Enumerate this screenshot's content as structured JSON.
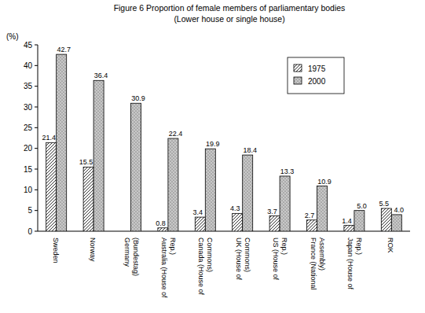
{
  "chart_data": {
    "type": "bar",
    "title": "Figure 6 Proportion of female members of parliamentary bodies",
    "subtitle": "(Lower house or single house)",
    "y_label": "(%)",
    "categories": [
      "Sweden",
      "Norway",
      "Germany (Bundestag)",
      "Australia (House of Rep.)",
      "Canada (House of Commons)",
      "UK (House of Commons)",
      "US (House of Rep.)",
      "France (National Assembly)",
      "Japan (House of Rep.)",
      "ROK"
    ],
    "series": [
      {
        "name": "1975",
        "color": "#ffffff",
        "values": [
          21.4,
          15.5,
          null,
          0.8,
          3.4,
          4.3,
          3.7,
          2.7,
          1.4,
          5.5
        ]
      },
      {
        "name": "2000",
        "color": "#c8c8c8",
        "values": [
          42.7,
          36.4,
          30.9,
          22.4,
          19.9,
          18.4,
          13.3,
          10.9,
          5.0,
          4.0
        ],
        "value_labels": [
          "42.7",
          "36.4",
          "30.9",
          "22.4",
          "19.9",
          "18.4",
          "13.3",
          "10.9",
          "5.0",
          "4.0"
        ]
      }
    ],
    "ylim": [
      0,
      45
    ],
    "yticks": [
      0,
      5,
      10,
      15,
      20,
      25,
      30,
      35,
      40,
      45
    ],
    "grid": false,
    "legend": "upper-right",
    "data_labels": true
  }
}
